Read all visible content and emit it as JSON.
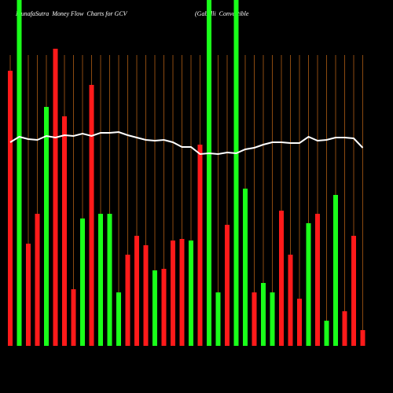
{
  "chart_data": {
    "type": "bar",
    "title": "MunafaSutra  Money Flow  Charts for GCV",
    "subtitle": "(Gabelli  Convertible",
    "categories": [
      null,
      null,
      null,
      null,
      null,
      null,
      null,
      null,
      null,
      null,
      null,
      null,
      null,
      null,
      null,
      null,
      null,
      null,
      null,
      null,
      null,
      null,
      null,
      null,
      null,
      null,
      null,
      null,
      null,
      null,
      null,
      null,
      null,
      null,
      null,
      null,
      null,
      null,
      null,
      null
    ],
    "values": [
      87.5,
      110,
      32.5,
      42,
      76,
      94.5,
      73,
      18,
      40.5,
      83,
      42,
      42,
      17,
      29,
      35,
      32,
      24,
      24.5,
      33.5,
      34,
      33.5,
      64,
      110,
      17,
      38.5,
      110,
      50,
      17,
      20,
      17,
      43,
      29,
      15,
      39,
      42,
      8,
      48,
      11,
      35,
      5
    ],
    "colors": [
      "#ff1a1a",
      "#1aff1a",
      "#ff1a1a",
      "#ff1a1a",
      "#1aff1a",
      "#ff1a1a",
      "#ff1a1a",
      "#ff1a1a",
      "#1aff1a",
      "#ff1a1a",
      "#1aff1a",
      "#1aff1a",
      "#1aff1a",
      "#ff1a1a",
      "#ff1a1a",
      "#ff1a1a",
      "#1aff1a",
      "#ff1a1a",
      "#ff1a1a",
      "#ff1a1a",
      "#1aff1a",
      "#ff1a1a",
      "#1aff1a",
      "#1aff1a",
      "#ff1a1a",
      "#1aff1a",
      "#1aff1a",
      "#ff1a1a",
      "#1aff1a",
      "#1aff1a",
      "#ff1a1a",
      "#ff1a1a",
      "#ff1a1a",
      "#1aff1a",
      "#ff1a1a",
      "#1aff1a",
      "#1aff1a",
      "#ff1a1a",
      "#ff1a1a",
      "#ff1a1a"
    ],
    "line_values": [
      64.75,
      66.5,
      65.75,
      65.5,
      66.75,
      66.25,
      67,
      66.75,
      67.5,
      66.75,
      67.75,
      67.75,
      68,
      67,
      66.25,
      65.5,
      65.25,
      65.5,
      64.75,
      63.25,
      63.25,
      61,
      61.25,
      61,
      61.5,
      61.25,
      62.5,
      63,
      64,
      64.75,
      64.75,
      64.5,
      64.5,
      66.5,
      65.25,
      65.5,
      66.25,
      66.25,
      66,
      63
    ],
    "line_color": "#ffffff",
    "grid_color": "#8b4a10",
    "ylim": [
      0,
      110
    ]
  }
}
